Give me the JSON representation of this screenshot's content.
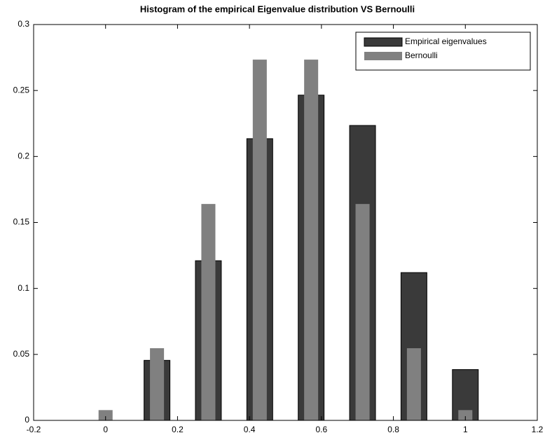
{
  "chart_data": {
    "type": "bar",
    "title": "Histogram of the empirical Eigenvalue distribution VS Bernoulli",
    "series": [
      {
        "name": "Empirical eigenvalues",
        "color": "#3a3a3a",
        "x": [
          0.1429,
          0.2857,
          0.4286,
          0.5714,
          0.7143,
          0.8571,
          1.0
        ],
        "values": [
          0.0455,
          0.121,
          0.2135,
          0.2465,
          0.2235,
          0.112,
          0.0385
        ]
      },
      {
        "name": "Bernoulli",
        "color": "#808080",
        "x": [
          0,
          0.1429,
          0.2857,
          0.4286,
          0.5714,
          0.7143,
          0.8571,
          1.0
        ],
        "values": [
          0.0078,
          0.0547,
          0.164,
          0.2734,
          0.2734,
          0.164,
          0.0547,
          0.0078
        ]
      }
    ],
    "xlim": [
      -0.2,
      1.2
    ],
    "xticks": [
      -0.2,
      0,
      0.2,
      0.4,
      0.6,
      0.8,
      1,
      1.2
    ],
    "ylim": [
      0,
      0.3
    ],
    "yticks": [
      0,
      0.05,
      0.1,
      0.15,
      0.2,
      0.25,
      0.3
    ],
    "grid": false,
    "legend": "upper right"
  }
}
